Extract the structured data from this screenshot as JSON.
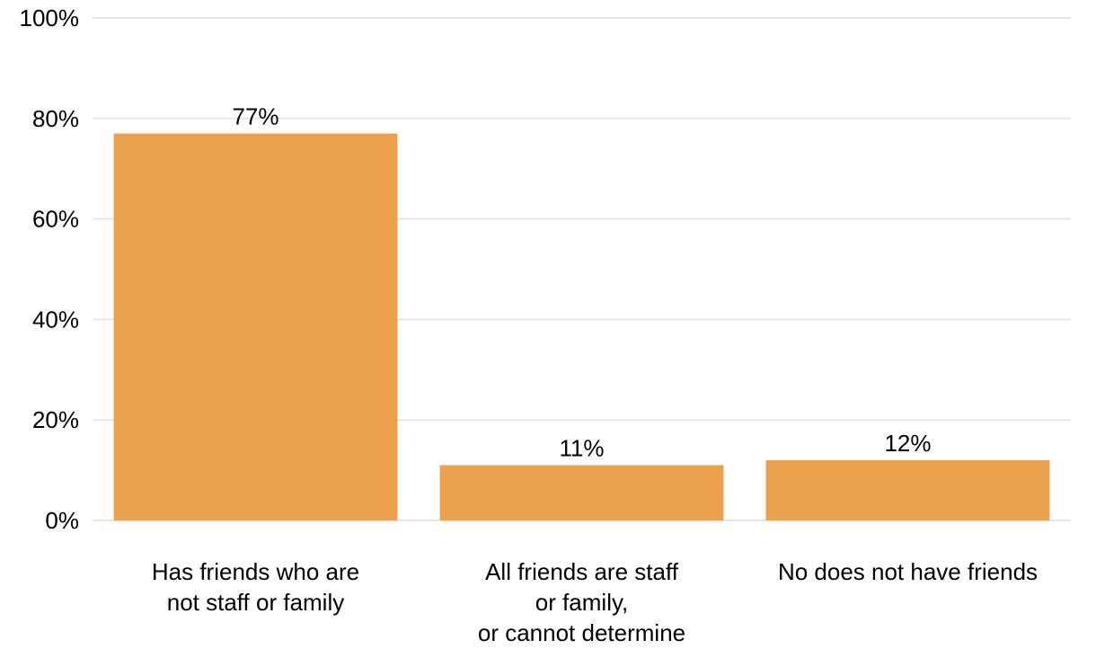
{
  "chart_data": {
    "type": "bar",
    "title": "",
    "xlabel": "",
    "ylabel": "",
    "categories": [
      [
        "Has friends who are",
        "not staff or family"
      ],
      [
        "All friends are staff",
        "or family,",
        "or cannot determine"
      ],
      [
        "No does not have friends"
      ]
    ],
    "values": [
      77,
      11,
      12
    ],
    "value_labels": [
      "77%",
      "11%",
      "12%"
    ],
    "ylim": [
      0,
      100
    ],
    "yticks": [
      0,
      20,
      40,
      60,
      80,
      100
    ],
    "ytick_labels": [
      "0%",
      "20%",
      "40%",
      "60%",
      "80%",
      "100%"
    ],
    "grid": true,
    "bar_color": "#EBA04B",
    "gridline_color": "#E6E6E6"
  }
}
